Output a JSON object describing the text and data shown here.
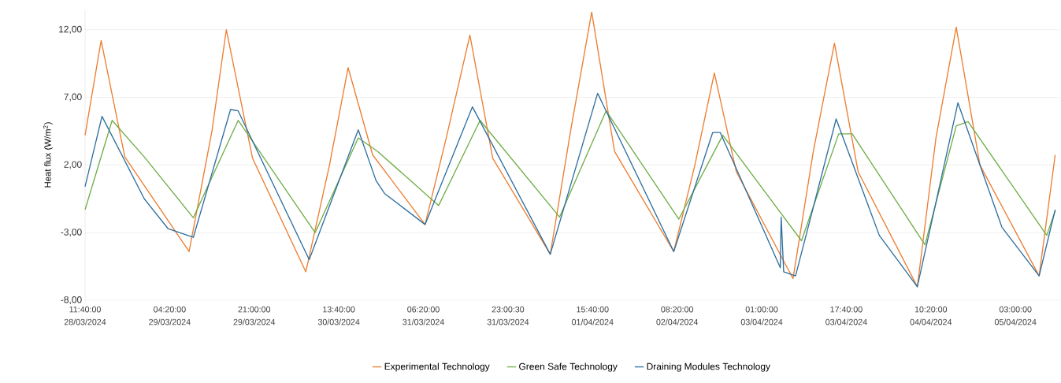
{
  "chart_data": {
    "type": "line",
    "ylabel": "Heat flux (W/m$^{2}$)",
    "xlim": [
      "2024-03-28T11:40",
      "2024-04-05T11:40"
    ],
    "xticks": [
      {
        "value": "2024-03-28T11:40",
        "label": "11:40:00 28/03/2024"
      },
      {
        "value": "2024-03-29T04:20",
        "label": "04:20:00 29/03/2024"
      },
      {
        "value": "2024-03-29T21:00",
        "label": "21:00:00 29/03/2024"
      },
      {
        "value": "2024-03-30T13:40",
        "label": "13:40:00 30/03/2024"
      },
      {
        "value": "2024-03-31T06:20",
        "label": "06:20:00 31/03/2024"
      },
      {
        "value": "2024-03-31T23:00",
        "label": "23:00:30 31/03/2024"
      },
      {
        "value": "2024-04-01T15:40",
        "label": "15:40:00 01/04/2024"
      },
      {
        "value": "2024-04-02T08:20",
        "label": "08:20:00 02/04/2024"
      },
      {
        "value": "2024-04-03T01:00",
        "label": "01:00:00 03/04/2024"
      },
      {
        "value": "2024-04-03T17:40",
        "label": "17:40:00 03/04/2024"
      },
      {
        "value": "2024-04-04T10:20",
        "label": "10:20:00 04/04/2024"
      },
      {
        "value": "2024-04-05T03:00",
        "label": "03:00:00 05/04/2024"
      }
    ],
    "ylim": [
      -8,
      13.5
    ],
    "yticks": [
      {
        "value": -8,
        "label": "-8,00"
      },
      {
        "value": -3,
        "label": "-3,00"
      },
      {
        "value": 2,
        "label": "2,00"
      },
      {
        "value": 7,
        "label": "7,00"
      },
      {
        "value": 12,
        "label": "12,00"
      }
    ],
    "grid": "y",
    "legend": "bottom",
    "marker": "none",
    "line_style": "solid",
    "series": [
      {
        "name": "Experimental Technology",
        "color": "#ed7d31",
        "x": [
          "2024-03-28T11:40",
          "2024-03-28T14:50",
          "2024-03-28T19:30",
          "2024-03-29T08:10",
          "2024-03-29T12:40",
          "2024-03-29T15:30",
          "2024-03-29T20:40",
          "2024-03-30T07:10",
          "2024-03-30T11:50",
          "2024-03-30T15:30",
          "2024-03-30T20:20",
          "2024-03-31T06:40",
          "2024-03-31T10:50",
          "2024-03-31T15:30",
          "2024-03-31T20:00",
          "2024-04-01T07:20",
          "2024-04-01T11:20",
          "2024-04-01T15:30",
          "2024-04-01T20:00",
          "2024-04-02T07:40",
          "2024-04-02T11:50",
          "2024-04-02T15:40",
          "2024-04-02T20:00",
          "2024-04-03T07:10",
          "2024-04-03T11:10",
          "2024-04-03T15:20",
          "2024-04-03T20:00",
          "2024-04-04T07:40",
          "2024-04-04T11:20",
          "2024-04-04T15:20",
          "2024-04-04T20:00",
          "2024-04-05T07:40",
          "2024-04-05T10:50"
        ],
        "values": [
          4.2,
          11.2,
          2.6,
          -4.4,
          4.5,
          12.0,
          2.5,
          -5.9,
          2.0,
          9.2,
          2.75,
          -2.4,
          4.0,
          11.6,
          2.5,
          -4.6,
          4.5,
          13.3,
          3.0,
          -4.4,
          2.0,
          8.8,
          1.5,
          -6.4,
          3.0,
          11.0,
          1.5,
          -7.0,
          4.0,
          12.2,
          2.0,
          -6.2,
          2.75
        ]
      },
      {
        "name": "Green Safe Technology",
        "color": "#70ad47",
        "x": [
          "2024-03-28T11:40",
          "2024-03-28T17:00",
          "2024-03-28T23:20",
          "2024-03-29T09:00",
          "2024-03-29T17:50",
          "2024-03-30T09:00",
          "2024-03-30T17:30",
          "2024-03-30T21:20",
          "2024-03-31T09:20",
          "2024-03-31T17:30",
          "2024-04-01T09:10",
          "2024-04-01T18:20",
          "2024-04-02T08:40",
          "2024-04-02T17:20",
          "2024-04-03T08:50",
          "2024-04-03T16:10",
          "2024-04-03T18:50",
          "2024-04-04T09:10",
          "2024-04-04T15:20",
          "2024-04-04T17:40",
          "2024-04-05T09:10",
          "2024-04-05T10:50"
        ],
        "values": [
          -1.3,
          5.3,
          2.6,
          -1.9,
          5.3,
          -3.0,
          4.0,
          3.0,
          -1.0,
          5.3,
          -1.85,
          6.0,
          -2.0,
          4.2,
          -3.6,
          4.3,
          4.3,
          -3.9,
          4.9,
          5.2,
          -3.2,
          -1.4
        ]
      },
      {
        "name": "Draining Modules Technology",
        "color": "#2e6f9e",
        "x": [
          "2024-03-28T11:40",
          "2024-03-28T15:00",
          "2024-03-28T23:20",
          "2024-03-29T04:00",
          "2024-03-29T09:00",
          "2024-03-29T16:20",
          "2024-03-29T17:50",
          "2024-03-30T07:50",
          "2024-03-30T17:30",
          "2024-03-30T21:00",
          "2024-03-30T22:40",
          "2024-03-31T06:40",
          "2024-03-31T16:00",
          "2024-04-01T07:20",
          "2024-04-01T16:40",
          "2024-04-02T07:40",
          "2024-04-02T15:20",
          "2024-04-02T16:50",
          "2024-04-03T04:40",
          "2024-04-03T04:50",
          "2024-04-03T05:20",
          "2024-04-03T07:40",
          "2024-04-03T15:40",
          "2024-04-04T00:10",
          "2024-04-04T07:40",
          "2024-04-04T15:40",
          "2024-04-05T00:20",
          "2024-04-05T07:40",
          "2024-04-05T10:50"
        ],
        "values": [
          0.4,
          5.6,
          -0.5,
          -2.7,
          -3.35,
          6.1,
          6.0,
          -5.0,
          4.6,
          0.85,
          -0.1,
          -2.4,
          6.3,
          -4.6,
          7.3,
          -4.4,
          4.4,
          4.4,
          -5.6,
          -1.85,
          -5.9,
          -6.2,
          5.4,
          -3.2,
          -7.0,
          6.6,
          -2.6,
          -6.2,
          -1.3
        ]
      }
    ]
  }
}
